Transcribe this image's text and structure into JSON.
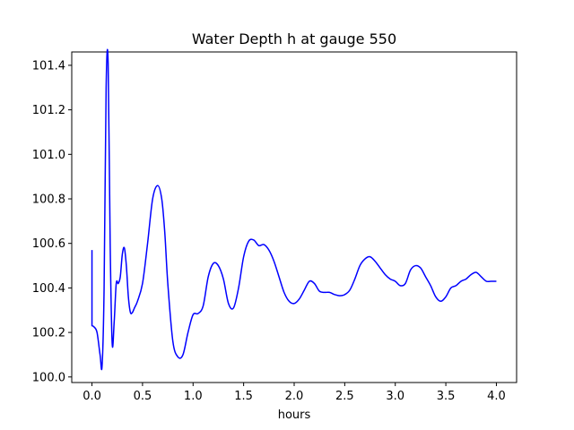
{
  "chart_data": {
    "type": "line",
    "title": "Water Depth h at gauge 550",
    "xlabel": "hours",
    "ylabel": "",
    "xlim": [
      -0.2,
      4.2
    ],
    "ylim": [
      99.975,
      101.46
    ],
    "xticks": [
      0.0,
      0.5,
      1.0,
      1.5,
      2.0,
      2.5,
      3.0,
      3.5,
      4.0
    ],
    "xtick_labels": [
      "0.0",
      "0.5",
      "1.0",
      "1.5",
      "2.0",
      "2.5",
      "3.0",
      "3.5",
      "4.0"
    ],
    "yticks": [
      100.0,
      100.2,
      100.4,
      100.6,
      100.8,
      101.0,
      101.2,
      101.4
    ],
    "ytick_labels": [
      "100.0",
      "100.2",
      "100.4",
      "100.6",
      "100.8",
      "101.0",
      "101.2",
      "101.4"
    ],
    "grid": false,
    "series": [
      {
        "color": "#0000ff",
        "x": [
          0.0,
          0.0,
          0.02,
          0.05,
          0.08,
          0.1,
          0.12,
          0.14,
          0.16,
          0.18,
          0.2,
          0.22,
          0.24,
          0.26,
          0.28,
          0.3,
          0.32,
          0.34,
          0.36,
          0.38,
          0.4,
          0.42,
          0.45,
          0.5,
          0.55,
          0.6,
          0.65,
          0.69,
          0.72,
          0.75,
          0.8,
          0.85,
          0.9,
          0.95,
          1.0,
          1.05,
          1.1,
          1.15,
          1.2,
          1.25,
          1.3,
          1.35,
          1.4,
          1.45,
          1.5,
          1.55,
          1.6,
          1.65,
          1.7,
          1.75,
          1.8,
          1.85,
          1.9,
          1.95,
          2.0,
          2.05,
          2.1,
          2.15,
          2.2,
          2.25,
          2.3,
          2.35,
          2.4,
          2.45,
          2.5,
          2.55,
          2.6,
          2.65,
          2.7,
          2.75,
          2.8,
          2.85,
          2.9,
          2.95,
          3.0,
          3.05,
          3.1,
          3.15,
          3.2,
          3.25,
          3.3,
          3.35,
          3.4,
          3.45,
          3.5,
          3.55,
          3.6,
          3.65,
          3.7,
          3.75,
          3.8,
          3.85,
          3.9,
          3.95,
          4.0
        ],
        "y": [
          100.57,
          100.23,
          100.225,
          100.2,
          100.1,
          100.05,
          100.4,
          101.3,
          101.41,
          100.6,
          100.15,
          100.25,
          100.42,
          100.42,
          100.45,
          100.55,
          100.58,
          100.5,
          100.36,
          100.29,
          100.29,
          100.31,
          100.34,
          100.42,
          100.6,
          100.8,
          100.86,
          100.8,
          100.65,
          100.42,
          100.16,
          100.09,
          100.1,
          100.2,
          100.28,
          100.285,
          100.32,
          100.45,
          100.51,
          100.5,
          100.44,
          100.33,
          100.31,
          100.4,
          100.54,
          100.61,
          100.615,
          100.59,
          100.595,
          100.57,
          100.52,
          100.45,
          100.38,
          100.34,
          100.33,
          100.35,
          100.39,
          100.43,
          100.42,
          100.385,
          100.38,
          100.38,
          100.37,
          100.365,
          100.37,
          100.39,
          100.44,
          100.5,
          100.53,
          100.54,
          100.52,
          100.49,
          100.46,
          100.44,
          100.43,
          100.41,
          100.42,
          100.48,
          100.5,
          100.49,
          100.45,
          100.41,
          100.36,
          100.34,
          100.36,
          100.4,
          100.41,
          100.43,
          100.44,
          100.46,
          100.47,
          100.45,
          100.43,
          100.43,
          100.43
        ]
      }
    ]
  }
}
